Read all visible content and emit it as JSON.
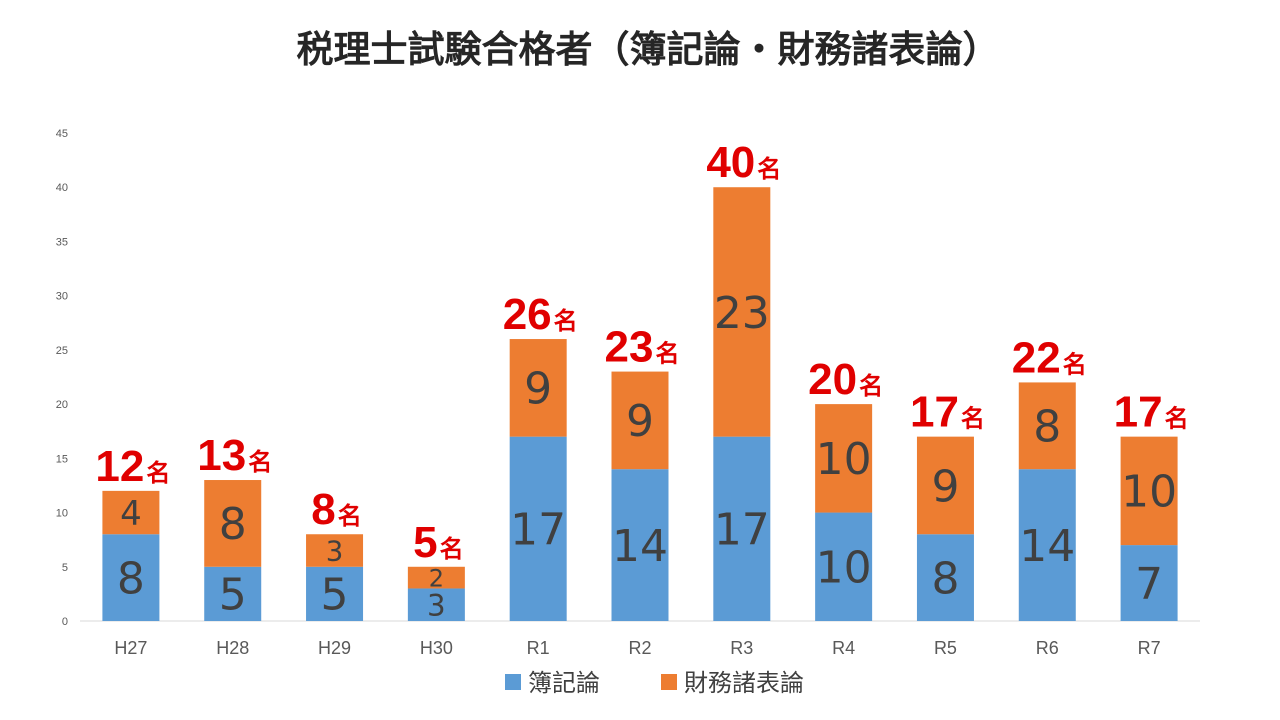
{
  "chart_data": {
    "type": "bar",
    "stacked": true,
    "title": "税理士試験合格者（簿記論・財務諸表論）",
    "categories": [
      "H27",
      "H28",
      "H29",
      "H30",
      "R1",
      "R2",
      "R3",
      "R4",
      "R5",
      "R6",
      "R7"
    ],
    "series": [
      {
        "name": "簿記論",
        "values": [
          8,
          5,
          5,
          3,
          17,
          14,
          17,
          10,
          8,
          14,
          7
        ],
        "color": "#5B9BD5"
      },
      {
        "name": "財務諸表論",
        "values": [
          4,
          8,
          3,
          2,
          9,
          9,
          23,
          10,
          9,
          8,
          10
        ],
        "color": "#ED7D31"
      }
    ],
    "totals": [
      12,
      13,
      8,
      5,
      26,
      23,
      40,
      20,
      17,
      22,
      17
    ],
    "total_unit": "名",
    "total_label_color": "#E00000",
    "ylim": [
      0,
      45
    ],
    "yticks": [
      0,
      5,
      10,
      15,
      20,
      25,
      30,
      35,
      40,
      45
    ],
    "grid": false,
    "legend": "bottom"
  }
}
